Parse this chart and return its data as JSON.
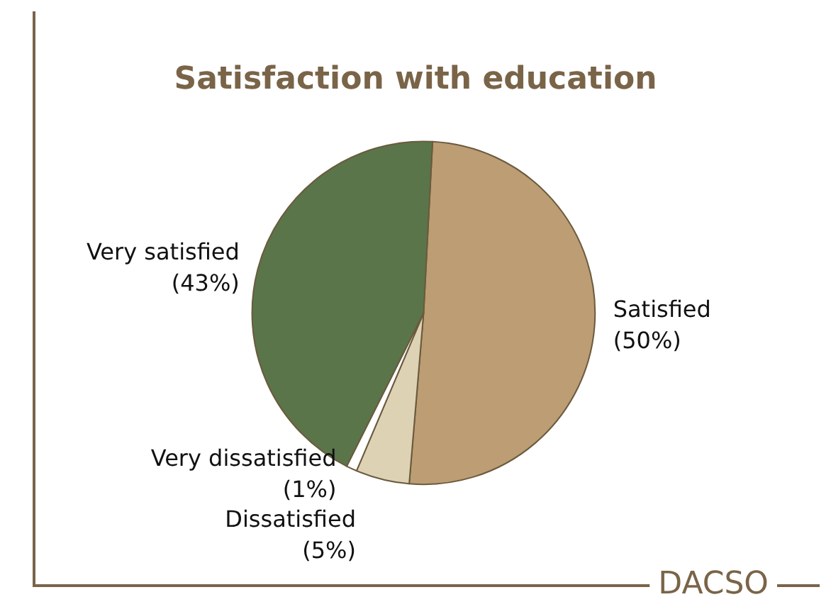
{
  "chart_data": {
    "type": "pie",
    "title": "Satisfaction with education",
    "categories": [
      "Satisfied",
      "Dissatisfied",
      "Very dissatisfied",
      "Very satisfied"
    ],
    "values": [
      50,
      5,
      1,
      43
    ],
    "colors": [
      "#bc9d74",
      "#ddd2b4",
      "#ffffff",
      "#5a754a"
    ],
    "value_labels": [
      "(50%)",
      "(5%)",
      "(1%)",
      "(43%)"
    ],
    "annotations": [
      "DACSO"
    ],
    "legend": false
  }
}
